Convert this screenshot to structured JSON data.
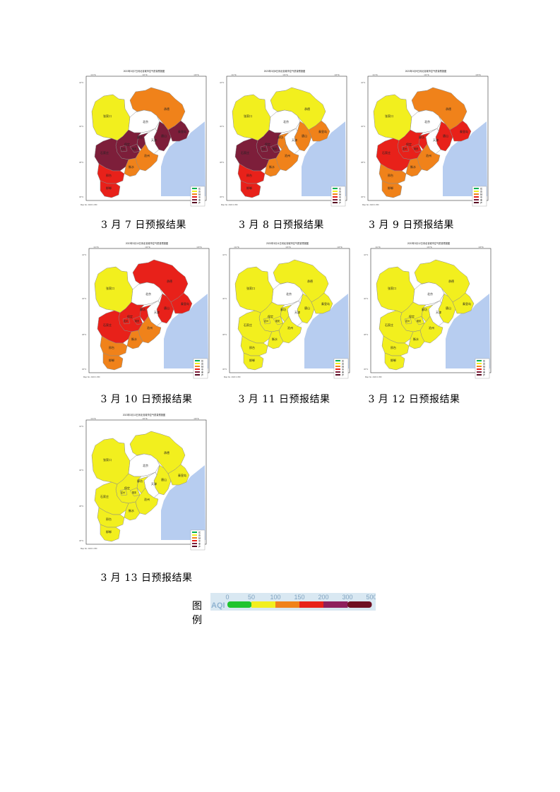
{
  "panels": [
    {
      "title": "2023年3月7日河北省城市空气质量预报图",
      "caption": "3 月 7 日预报结果",
      "colors": {
        "zjk": "#f2ef1e",
        "cd": "#f0821a",
        "bj": "#ffffff",
        "tj": "#ffffff",
        "ts": "#7d1e3a",
        "qhd": "#7d1e3a",
        "lf": "#7d1e3a",
        "bd": "#7d1e3a",
        "cz": "#f0821a",
        "sjz": "#7d1e3a",
        "hs": "#f0821a",
        "xt": "#e8211a",
        "hd": "#e8211a",
        "xa": "#7d1e3a",
        "dx": "#7d1e3a"
      }
    },
    {
      "title": "2023年3月8日河北省城市空气质量预报图",
      "caption": "3 月 8 日预报结果",
      "colors": {
        "zjk": "#f2ef1e",
        "cd": "#f2ef1e",
        "bj": "#ffffff",
        "tj": "#ffffff",
        "ts": "#f0821a",
        "qhd": "#f0821a",
        "lf": "#f0821a",
        "bd": "#7d1e3a",
        "cz": "#f0821a",
        "sjz": "#7d1e3a",
        "hs": "#f0821a",
        "xt": "#e8211a",
        "hd": "#e8211a",
        "xa": "#7d1e3a",
        "dx": "#7d1e3a"
      }
    },
    {
      "title": "2023年3月9日河北省城市空气质量预报图",
      "caption": "3 月 9 日预报结果",
      "colors": {
        "zjk": "#f2ef1e",
        "cd": "#f0821a",
        "bj": "#ffffff",
        "tj": "#ffffff",
        "ts": "#e8211a",
        "qhd": "#e8211a",
        "lf": "#e8211a",
        "bd": "#e8211a",
        "cz": "#f0821a",
        "sjz": "#e8211a",
        "hs": "#f0821a",
        "xt": "#f0821a",
        "hd": "#f0821a",
        "xa": "#e8211a",
        "dx": "#e8211a"
      }
    },
    {
      "title": "2023年3月10日河北省城市空气质量预报图",
      "caption": "3 月 10 日预报结果",
      "colors": {
        "zjk": "#f2ef1e",
        "cd": "#e8211a",
        "bj": "#ffffff",
        "tj": "#ffffff",
        "ts": "#e8211a",
        "qhd": "#e8211a",
        "lf": "#e8211a",
        "bd": "#e8211a",
        "cz": "#f0821a",
        "sjz": "#e8211a",
        "hs": "#f0821a",
        "xt": "#f0821a",
        "hd": "#f0821a",
        "xa": "#e8211a",
        "dx": "#e8211a"
      }
    },
    {
      "title": "2023年3月11日河北省城市空气质量预报图",
      "caption": "3 月 11 日预报结果",
      "colors": {
        "zjk": "#f2ef1e",
        "cd": "#f2ef1e",
        "bj": "#ffffff",
        "tj": "#ffffff",
        "ts": "#f2ef1e",
        "qhd": "#f2ef1e",
        "lf": "#f2ef1e",
        "bd": "#f2ef1e",
        "cz": "#f2ef1e",
        "sjz": "#f2ef1e",
        "hs": "#f2ef1e",
        "xt": "#f2ef1e",
        "hd": "#f2ef1e",
        "xa": "#f2ef1e",
        "dx": "#f2ef1e"
      }
    },
    {
      "title": "2023年3月12日河北省城市空气质量预报图",
      "caption": "3 月 12 日预报结果",
      "colors": {
        "zjk": "#f2ef1e",
        "cd": "#f2ef1e",
        "bj": "#ffffff",
        "tj": "#ffffff",
        "ts": "#f2ef1e",
        "qhd": "#f2ef1e",
        "lf": "#f2ef1e",
        "bd": "#f2ef1e",
        "cz": "#f2ef1e",
        "sjz": "#f2ef1e",
        "hs": "#f2ef1e",
        "xt": "#f2ef1e",
        "hd": "#f2ef1e",
        "xa": "#f2ef1e",
        "dx": "#f2ef1e"
      }
    },
    {
      "title": "2023年3月13日河北省城市空气质量预报图",
      "caption": "3 月 13 日预报结果",
      "colors": {
        "zjk": "#f2ef1e",
        "cd": "#f2ef1e",
        "bj": "#ffffff",
        "tj": "#ffffff",
        "ts": "#f2ef1e",
        "qhd": "#f2ef1e",
        "lf": "#f2ef1e",
        "bd": "#f2ef1e",
        "cz": "#f2ef1e",
        "sjz": "#f2ef1e",
        "hs": "#f2ef1e",
        "xt": "#f2ef1e",
        "hd": "#f2ef1e",
        "xa": "#f2ef1e",
        "dx": "#f2ef1e"
      }
    }
  ],
  "city_labels": {
    "zjk": "张家口",
    "cd": "承德",
    "bj": "北京",
    "tj": "天津",
    "ts": "唐山",
    "qhd": "秦皇岛",
    "lf": "廊坊",
    "bd": "保定",
    "cz": "沧州",
    "sjz": "石家庄",
    "hs": "衡水",
    "xt": "邢台",
    "hd": "邯郸",
    "xa": "雄安",
    "dx": "定州"
  },
  "panel_legend": [
    {
      "label": "优",
      "color": "#00b050"
    },
    {
      "label": "良",
      "color": "#f2ef1e"
    },
    {
      "label": "轻",
      "color": "#f0821a"
    },
    {
      "label": "中",
      "color": "#e8211a"
    },
    {
      "label": "重",
      "color": "#7d1e3a"
    },
    {
      "label": "严",
      "color": "#5a0a22"
    }
  ],
  "axis_labels": {
    "top": [
      "114°E",
      "116°E",
      "118°E"
    ],
    "left": [
      "42°N",
      "40°N",
      "38°N",
      "36°N"
    ]
  },
  "footer_text": "Map No.  2023 1:350",
  "sea_color": "#b7cdf0",
  "legend": {
    "label": "图例",
    "aqi_label": "AQI",
    "ticks": [
      "0",
      "50",
      "100",
      "150",
      "200",
      "300",
      "500"
    ],
    "colors": [
      "#1fc42e",
      "#f2ef1e",
      "#f0821a",
      "#e8211a",
      "#8e1f5c",
      "#6e0f22"
    ]
  }
}
